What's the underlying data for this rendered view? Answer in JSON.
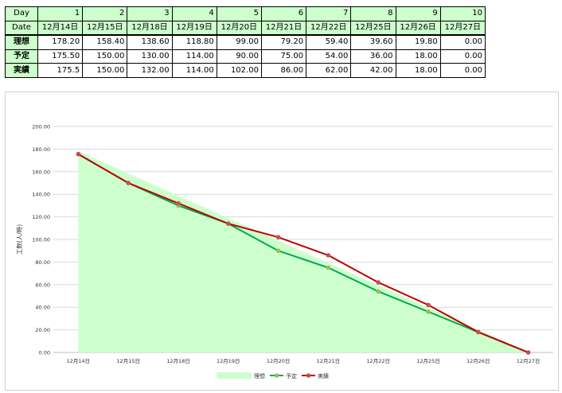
{
  "table": {
    "day_label": "Day",
    "date_label": "Date",
    "days": [
      "1",
      "2",
      "3",
      "4",
      "5",
      "6",
      "7",
      "8",
      "9",
      "10"
    ],
    "dates": [
      "12月14日",
      "12月15日",
      "12月18日",
      "12月19日",
      "12月20日",
      "12月21日",
      "12月22日",
      "12月25日",
      "12月26日",
      "12月27日"
    ],
    "rows": [
      {
        "label": "理想",
        "values": [
          "178.20",
          "158.40",
          "138.60",
          "118.80",
          "99.00",
          "79.20",
          "59.40",
          "39.60",
          "19.80",
          "0.00"
        ]
      },
      {
        "label": "予定",
        "values": [
          "175.50",
          "150.00",
          "130.00",
          "114.00",
          "90.00",
          "75.00",
          "54.00",
          "36.00",
          "18.00",
          "0.00"
        ]
      },
      {
        "label": "実績",
        "values": [
          "175.5",
          "150.00",
          "132.00",
          "114.00",
          "102.00",
          "86.00",
          "62.00",
          "42.00",
          "18.00",
          "0.00"
        ]
      }
    ]
  },
  "colors": {
    "table_header_bg": "#ccffcc",
    "ideal_fill": "#ccffcc",
    "plan_line": "#00a84f",
    "plan_marker": "#9bbb59",
    "actual_line": "#c00000",
    "actual_marker": "#c0504d",
    "gridline": "#d9d9d9"
  },
  "chart_data": {
    "type": "area",
    "categories": [
      "12月14日",
      "12月15日",
      "12月18日",
      "12月19日",
      "12月20日",
      "12月21日",
      "12月22日",
      "12月25日",
      "12月26日",
      "12月27日"
    ],
    "series": [
      {
        "name": "理想",
        "render": "area",
        "values": [
          178.2,
          158.4,
          138.6,
          118.8,
          99.0,
          79.2,
          59.4,
          39.6,
          19.8,
          0.0
        ]
      },
      {
        "name": "予定",
        "render": "line",
        "values": [
          175.5,
          150.0,
          130.0,
          114.0,
          90.0,
          75.0,
          54.0,
          36.0,
          18.0,
          0.0
        ]
      },
      {
        "name": "実績",
        "render": "line",
        "values": [
          175.5,
          150.0,
          132.0,
          114.0,
          102.0,
          86.0,
          62.0,
          42.0,
          18.0,
          0.0
        ]
      }
    ],
    "ylabel": "工数(人/時)",
    "ylim": [
      0,
      200
    ],
    "yticks": [
      "0.00",
      "20.00",
      "40.00",
      "60.00",
      "80.00",
      "100.00",
      "120.00",
      "140.00",
      "160.00",
      "180.00",
      "200.00"
    ],
    "grid": true,
    "legend": "bottom"
  }
}
